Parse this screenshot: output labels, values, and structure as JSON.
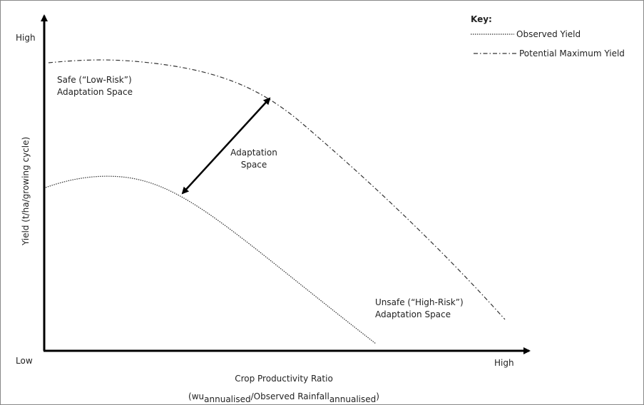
{
  "y_axis": {
    "label": "Yield (t/ha/growing cycle)",
    "high": "High",
    "low": "Low"
  },
  "x_axis": {
    "high": "High",
    "title": "Crop Productivity Ratio",
    "subtitle_parts": [
      "(wu",
      "annualised",
      "/Observed Rainfall",
      "annualised",
      ")"
    ]
  },
  "key": {
    "title": "Key:",
    "entries": [
      "Observed Yield",
      "Potential Maximum Yield"
    ]
  },
  "annotations": {
    "safe": [
      "Safe (“Low-Risk”)",
      "Adaptation Space"
    ],
    "adaptation": [
      "Adaptation",
      "Space"
    ],
    "unsafe": [
      "Unsafe (“High-Risk”)",
      "Adaptation Space"
    ]
  }
}
